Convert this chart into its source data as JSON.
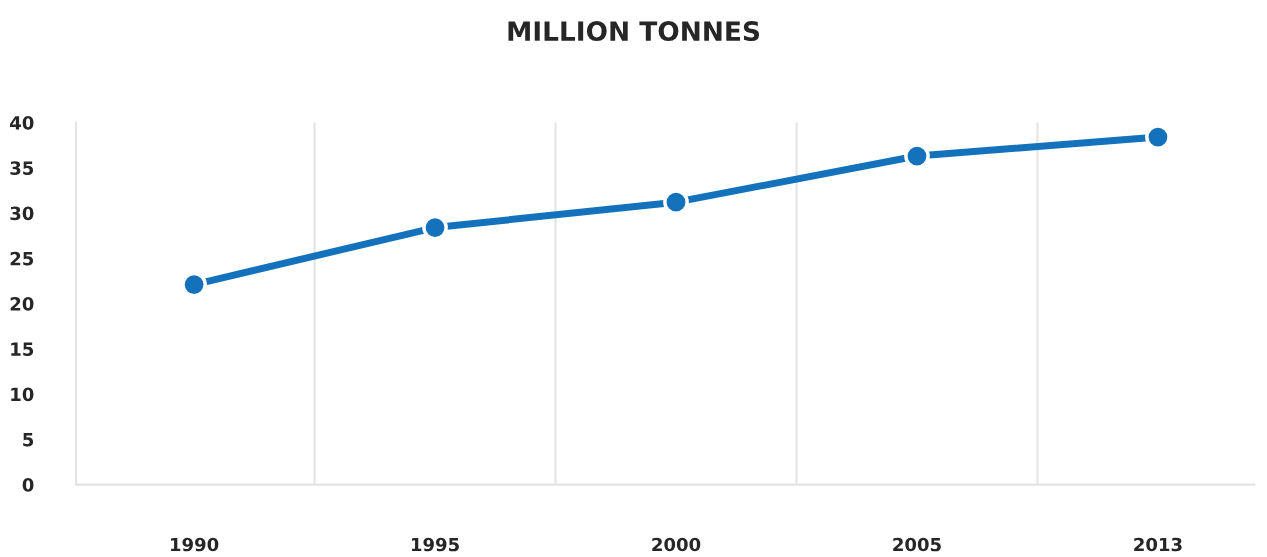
{
  "chart_data": {
    "type": "line",
    "title": "MILLION TONNES",
    "categories": [
      "1990",
      "1995",
      "2000",
      "2005",
      "2013"
    ],
    "series": [
      {
        "color": "#1372bb",
        "values": [
          22.1,
          28.4,
          31.2,
          36.3,
          38.4
        ]
      }
    ],
    "ylim": [
      0,
      40
    ],
    "yticks": [
      0,
      5,
      10,
      15,
      20,
      25,
      30,
      35,
      40
    ],
    "grid": "x",
    "marker": "circle",
    "line_style": "solid"
  }
}
